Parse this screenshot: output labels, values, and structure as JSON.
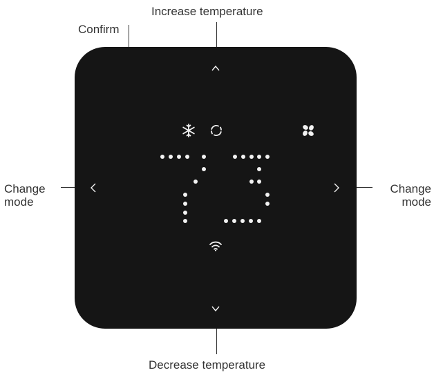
{
  "labels": {
    "increase": "Increase temperature",
    "decrease": "Decrease temperature",
    "confirm": "Confirm",
    "change_mode_left_1": "Change",
    "change_mode_left_2": "mode",
    "change_mode_right_1": "Change",
    "change_mode_right_2": "mode"
  },
  "display": {
    "temperature": "73"
  },
  "icons": {
    "snowflake": "snowflake-icon",
    "cycle": "cycle-icon",
    "fan": "fan-icon",
    "wifi": "wifi-icon"
  },
  "colors": {
    "panel": "#151515",
    "display": "#f2f2f2",
    "text": "#333333"
  }
}
